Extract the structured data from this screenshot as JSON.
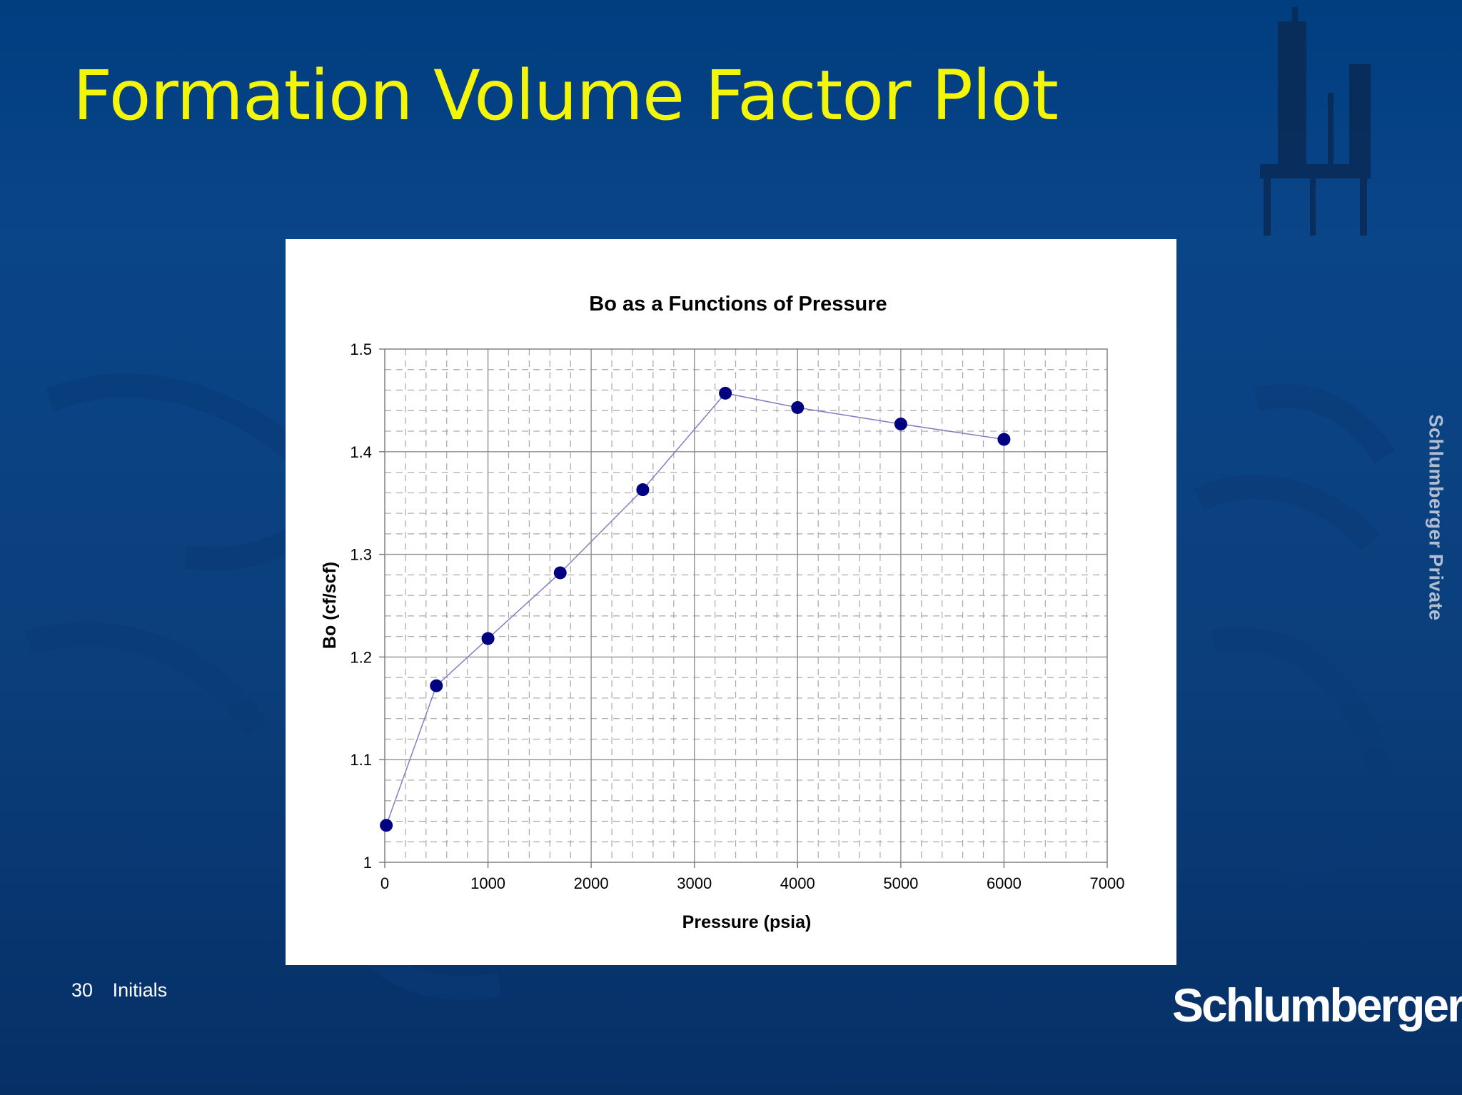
{
  "slide": {
    "title": "Formation Volume Factor Plot",
    "side_label": "Schlumberger Private",
    "slide_number": "30",
    "footer_text": "Initials",
    "brand": "Schlumberger",
    "colors": {
      "background_top": "#003e80",
      "background_bottom": "#062f66",
      "title": "#f4f60a",
      "side_label": "#b3bdd0",
      "marker": "#000080",
      "line": "#8080c0"
    }
  },
  "chart_data": {
    "type": "scatter",
    "title": "Bo as a Functions of Pressure",
    "xlabel": "Pressure (psia)",
    "ylabel": "Bo (cf/scf)",
    "xlim": [
      0,
      7000
    ],
    "ylim": [
      1,
      1.5
    ],
    "xticks": [
      "0",
      "1000",
      "2000",
      "3000",
      "4000",
      "5000",
      "6000",
      "7000"
    ],
    "yticks": [
      "1",
      "1.1",
      "1.2",
      "1.3",
      "1.4",
      "1.5"
    ],
    "grid": true,
    "legend": "none",
    "series": [
      {
        "x": [
          14.7,
          500,
          1000,
          1700,
          2500,
          3300,
          4000,
          5000,
          6000
        ],
        "y": [
          1.036,
          1.172,
          1.218,
          1.282,
          1.363,
          1.457,
          1.443,
          1.427,
          1.412
        ],
        "connected": true
      }
    ]
  }
}
